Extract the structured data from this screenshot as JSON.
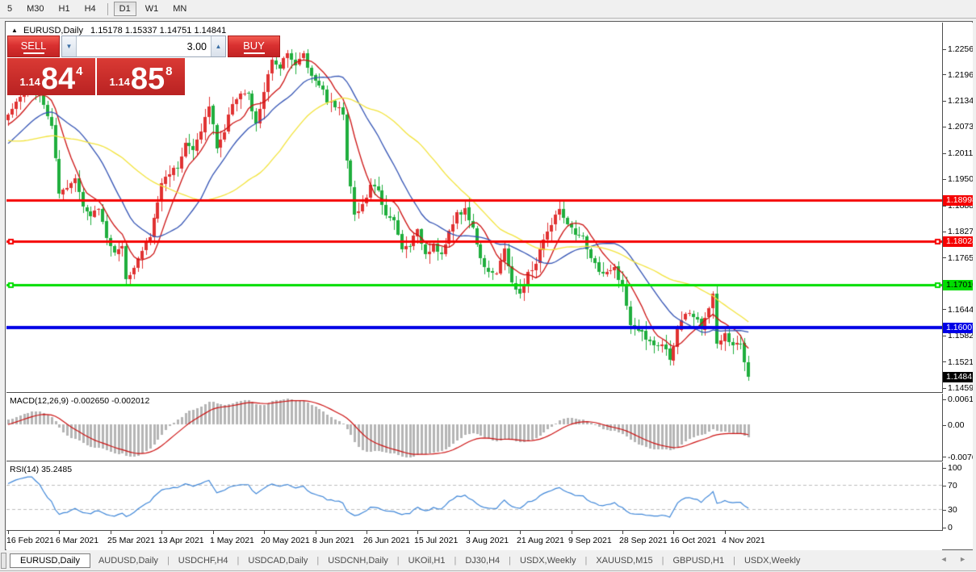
{
  "toolbar": {
    "items": [
      {
        "label": "5"
      },
      {
        "label": "M30"
      },
      {
        "label": "H1"
      },
      {
        "label": "H4"
      },
      {
        "sep": true
      },
      {
        "label": "D1",
        "active": true
      },
      {
        "label": "W1"
      },
      {
        "label": "MN"
      }
    ]
  },
  "chart": {
    "collapse_icon": "▲",
    "symbol_title": "EURUSD,Daily",
    "ohlc_text": "1.15178 1.15337 1.14751 1.14841"
  },
  "trade_panel": {
    "sell_label": "SELL",
    "buy_label": "BUY",
    "volume": "3.00",
    "down_icon": "▼",
    "up_icon": "▲",
    "sell_price": {
      "small": "1.14",
      "big": "84",
      "sup": "4"
    },
    "buy_price": {
      "small": "1.14",
      "big": "85",
      "sup": "8"
    }
  },
  "chart_data": {
    "type": "candlestick",
    "symbol": "EURUSD",
    "timeframe": "Daily",
    "candle_count": 189,
    "last_ohlc": {
      "open": 1.15178,
      "high": 1.15337,
      "low": 1.14751,
      "close": 1.14841
    },
    "price_axis_ticks": [
      "1.22560",
      "1.21960",
      "1.21345",
      "1.20730",
      "1.20115",
      "1.19500",
      "1.18885",
      "1.18270",
      "1.17655",
      "1.16440",
      "1.15825",
      "1.15210",
      "1.14595"
    ],
    "x_labels": [
      "16 Feb 2021",
      "6 Mar 2021",
      "25 Mar 2021",
      "13 Apr 2021",
      "1 May 2021",
      "20 May 2021",
      "8 Jun 2021",
      "26 Jun 2021",
      "15 Jul 2021",
      "3 Aug 2021",
      "21 Aug 2021",
      "9 Sep 2021",
      "28 Sep 2021",
      "16 Oct 2021",
      "4 Nov 2021"
    ],
    "label_every": 13,
    "hlines": [
      {
        "price": 1.18998,
        "color": "#f50000",
        "width": 3,
        "label": "1.18998",
        "text": "#ffffff",
        "handles": false
      },
      {
        "price": 1.18024,
        "color": "#f50000",
        "width": 3,
        "label": "1.18024",
        "text": "#ffffff",
        "handles": true
      },
      {
        "price": 1.1701,
        "color": "#00dd00",
        "width": 3,
        "label": "1.17010",
        "text": "#000000",
        "handles": true
      },
      {
        "price": 1.16007,
        "color": "#0000e6",
        "width": 4,
        "label": "1.16007",
        "text": "#ffffff",
        "handles": false
      }
    ],
    "current_badge": {
      "price": 1.14841,
      "label": "1.14841",
      "bg": "#000000",
      "text": "#ffffff"
    },
    "candle_colors": {
      "up": "#e03232",
      "down": "#1fae3d"
    },
    "moving_averages": [
      {
        "period": 8,
        "color": "#cc1111"
      },
      {
        "period": 20,
        "color": "#3353b4"
      },
      {
        "period": 40,
        "color": "#f2e33c"
      }
    ],
    "pre_anchors": [
      [
        -70,
        1.216
      ],
      [
        -55,
        1.228
      ],
      [
        -40,
        1.218
      ],
      [
        -28,
        1.201
      ],
      [
        -18,
        1.196
      ],
      [
        -8,
        1.206
      ],
      [
        -1,
        1.2085
      ]
    ],
    "close_anchors": [
      [
        0,
        1.2105
      ],
      [
        2,
        1.213
      ],
      [
        5,
        1.216
      ],
      [
        7,
        1.216
      ],
      [
        9,
        1.212
      ],
      [
        11,
        1.2075
      ],
      [
        13,
        1.191
      ],
      [
        15,
        1.1925
      ],
      [
        17,
        1.195
      ],
      [
        19,
        1.189
      ],
      [
        21,
        1.186
      ],
      [
        23,
        1.188
      ],
      [
        25,
        1.1815
      ],
      [
        27,
        1.1775
      ],
      [
        29,
        1.1785
      ],
      [
        30,
        1.172
      ],
      [
        32,
        1.174
      ],
      [
        34,
        1.178
      ],
      [
        36,
        1.1815
      ],
      [
        38,
        1.1895
      ],
      [
        39,
        1.194
      ],
      [
        41,
        1.1965
      ],
      [
        43,
        1.198
      ],
      [
        45,
        1.2035
      ],
      [
        47,
        1.2015
      ],
      [
        49,
        1.2065
      ],
      [
        51,
        1.212
      ],
      [
        53,
        1.2025
      ],
      [
        55,
        1.206
      ],
      [
        57,
        1.213
      ],
      [
        59,
        1.215
      ],
      [
        61,
        1.2145
      ],
      [
        63,
        1.2075
      ],
      [
        65,
        1.2155
      ],
      [
        67,
        1.2225
      ],
      [
        69,
        1.2215
      ],
      [
        71,
        1.225
      ],
      [
        73,
        1.2215
      ],
      [
        75,
        1.2245
      ],
      [
        77,
        1.219
      ],
      [
        79,
        1.2175
      ],
      [
        81,
        1.2135
      ],
      [
        83,
        1.212
      ],
      [
        85,
        1.2105
      ],
      [
        86,
        1.1995
      ],
      [
        87,
        1.1935
      ],
      [
        88,
        1.1865
      ],
      [
        90,
        1.1885
      ],
      [
        92,
        1.193
      ],
      [
        94,
        1.1925
      ],
      [
        96,
        1.186
      ],
      [
        98,
        1.185
      ],
      [
        100,
        1.1785
      ],
      [
        102,
        1.1795
      ],
      [
        104,
        1.1825
      ],
      [
        106,
        1.1775
      ],
      [
        108,
        1.1795
      ],
      [
        110,
        1.177
      ],
      [
        112,
        1.182
      ],
      [
        114,
        1.187
      ],
      [
        116,
        1.1875
      ],
      [
        118,
        1.1835
      ],
      [
        120,
        1.176
      ],
      [
        122,
        1.1735
      ],
      [
        124,
        1.173
      ],
      [
        126,
        1.178
      ],
      [
        128,
        1.171
      ],
      [
        130,
        1.1675
      ],
      [
        132,
        1.1725
      ],
      [
        134,
        1.175
      ],
      [
        136,
        1.181
      ],
      [
        138,
        1.184
      ],
      [
        140,
        1.188
      ],
      [
        142,
        1.184
      ],
      [
        144,
        1.1815
      ],
      [
        146,
        1.181
      ],
      [
        148,
        1.1765
      ],
      [
        150,
        1.173
      ],
      [
        152,
        1.1725
      ],
      [
        154,
        1.174
      ],
      [
        156,
        1.1695
      ],
      [
        158,
        1.16
      ],
      [
        160,
        1.1595
      ],
      [
        162,
        1.1575
      ],
      [
        164,
        1.1555
      ],
      [
        166,
        1.156
      ],
      [
        168,
        1.153
      ],
      [
        170,
        1.159
      ],
      [
        172,
        1.163
      ],
      [
        174,
        1.1625
      ],
      [
        176,
        1.16
      ],
      [
        178,
        1.165
      ],
      [
        179,
        1.168
      ],
      [
        180,
        1.156
      ],
      [
        182,
        1.158
      ],
      [
        184,
        1.1555
      ],
      [
        186,
        1.1565
      ],
      [
        187,
        1.152
      ],
      [
        188,
        1.14841
      ]
    ],
    "macd": {
      "label": "MACD(12,26,9) -0.002650 -0.002012",
      "fast": 12,
      "slow": 26,
      "signal": 9,
      "value": -0.00265,
      "signal_value": -0.002012,
      "axis": [
        "0.006193",
        "0.00",
        "-0.007621"
      ],
      "hist_color": "#b5b5b5",
      "signal_color": "#cc1111"
    },
    "rsi": {
      "label": "RSI(14) 35.2485",
      "period": 14,
      "value": 35.2485,
      "levels": [
        70,
        30
      ],
      "axis": [
        "100",
        "70",
        "30",
        "0"
      ],
      "line_color": "#3e86d8",
      "level_color": "#bdbdbd"
    }
  },
  "tabbar": {
    "tabs": [
      {
        "label": "EURUSD,Daily",
        "active": true
      },
      {
        "label": "AUDUSD,Daily"
      },
      {
        "label": "USDCHF,H4"
      },
      {
        "label": "USDCAD,Daily"
      },
      {
        "label": "USDCNH,Daily"
      },
      {
        "label": "UKOil,H1"
      },
      {
        "label": "DJ30,H4"
      },
      {
        "label": "USDX,Weekly"
      },
      {
        "label": "XAUUSD,M15"
      },
      {
        "label": "GBPUSD,H1"
      },
      {
        "label": "USDX,Weekly"
      }
    ],
    "scroll_icons": "◄ ►"
  }
}
